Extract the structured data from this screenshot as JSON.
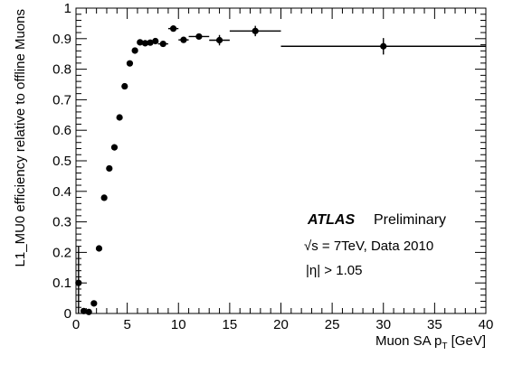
{
  "chart_data": {
    "type": "scatter",
    "xlabel": "Muon SA p",
    "xlabel_sub": "T",
    "xlabel_unit": " [GeV]",
    "ylabel": "L1_MU0 efficiency relative to offline Muons",
    "xlim": [
      0,
      40
    ],
    "ylim": [
      0,
      1
    ],
    "x_ticks": [
      "0",
      "5",
      "10",
      "15",
      "20",
      "25",
      "30",
      "35",
      "40"
    ],
    "y_ticks": [
      "0",
      "0.1",
      "0.2",
      "0.3",
      "0.4",
      "0.5",
      "0.6",
      "0.7",
      "0.8",
      "0.9",
      "1"
    ],
    "grid": false,
    "annotations": {
      "experiment": "ATLAS",
      "status": "Preliminary",
      "energy_sqrt": "√s",
      "energy_rest": " = 7TeV, Data 2010",
      "eta_cut": "|η| > 1.05"
    },
    "series": [
      {
        "points": [
          {
            "x": 0.25,
            "y": 0.1,
            "xerr": 0.25,
            "yerr": 0.12
          },
          {
            "x": 0.75,
            "y": 0.008,
            "xerr": 0.25,
            "yerr": 0.006
          },
          {
            "x": 1.25,
            "y": 0.005,
            "xerr": 0.25,
            "yerr": 0.004
          },
          {
            "x": 1.75,
            "y": 0.033,
            "xerr": 0.25,
            "yerr": 0.008
          },
          {
            "x": 2.25,
            "y": 0.213,
            "xerr": 0.25,
            "yerr": 0.008
          },
          {
            "x": 2.75,
            "y": 0.379,
            "xerr": 0.25,
            "yerr": 0.008
          },
          {
            "x": 3.25,
            "y": 0.475,
            "xerr": 0.25,
            "yerr": 0.008
          },
          {
            "x": 3.75,
            "y": 0.544,
            "xerr": 0.25,
            "yerr": 0.008
          },
          {
            "x": 4.25,
            "y": 0.642,
            "xerr": 0.25,
            "yerr": 0.008
          },
          {
            "x": 4.75,
            "y": 0.744,
            "xerr": 0.25,
            "yerr": 0.008
          },
          {
            "x": 5.25,
            "y": 0.819,
            "xerr": 0.25,
            "yerr": 0.008
          },
          {
            "x": 5.75,
            "y": 0.861,
            "xerr": 0.25,
            "yerr": 0.008
          },
          {
            "x": 6.25,
            "y": 0.888,
            "xerr": 0.25,
            "yerr": 0.008
          },
          {
            "x": 6.75,
            "y": 0.885,
            "xerr": 0.25,
            "yerr": 0.008
          },
          {
            "x": 7.25,
            "y": 0.887,
            "xerr": 0.25,
            "yerr": 0.008
          },
          {
            "x": 7.75,
            "y": 0.892,
            "xerr": 0.25,
            "yerr": 0.008
          },
          {
            "x": 8.5,
            "y": 0.883,
            "xerr": 0.5,
            "yerr": 0.008
          },
          {
            "x": 9.5,
            "y": 0.933,
            "xerr": 0.5,
            "yerr": 0.008
          },
          {
            "x": 10.5,
            "y": 0.896,
            "xerr": 0.5,
            "yerr": 0.008
          },
          {
            "x": 12,
            "y": 0.907,
            "xerr": 1,
            "yerr": 0.008
          },
          {
            "x": 14,
            "y": 0.895,
            "xerr": 1,
            "yerr": 0.017
          },
          {
            "x": 17.5,
            "y": 0.925,
            "xerr": 2.5,
            "yerr": 0.017
          },
          {
            "x": 30,
            "y": 0.875,
            "xerr": 10,
            "yerr": 0.027
          }
        ]
      }
    ]
  }
}
